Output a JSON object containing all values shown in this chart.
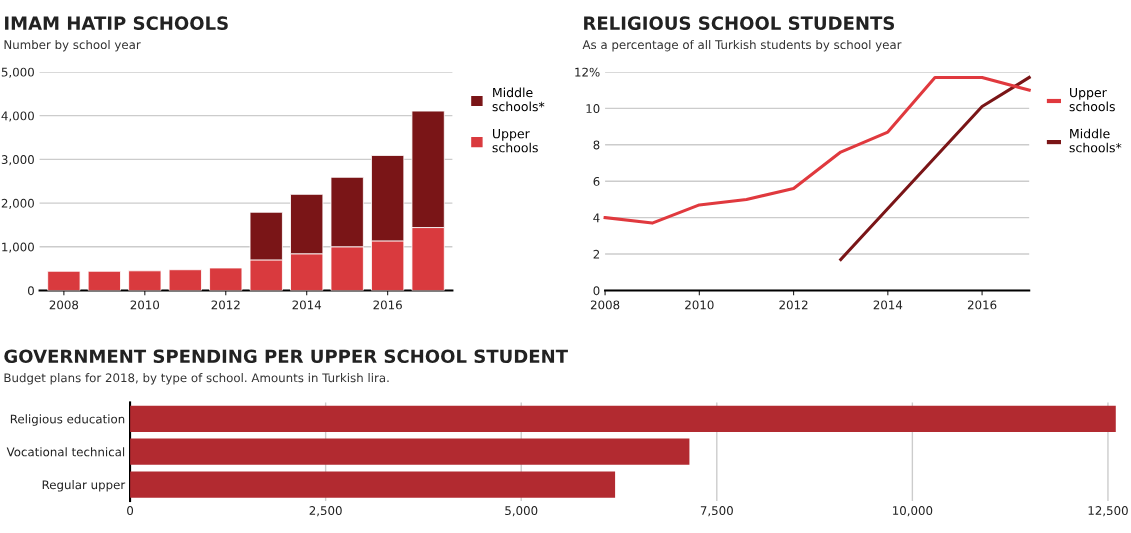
{
  "chart_data": [
    {
      "type": "bar",
      "title": "IMAM HATIP SCHOOLS",
      "subtitle": "Number by school year",
      "stacked": true,
      "x": [
        2008,
        2009,
        2010,
        2011,
        2012,
        2013,
        2014,
        2015,
        2016,
        2017
      ],
      "series": [
        {
          "name": "Upper\nschools",
          "color": "#d93a3e",
          "values": [
            440,
            440,
            450,
            475,
            515,
            700,
            840,
            1000,
            1135,
            1440
          ]
        },
        {
          "name": "Middle\nschools*",
          "color": "#7a1517",
          "values": [
            null,
            null,
            null,
            null,
            null,
            1090,
            1360,
            1590,
            1955,
            2665
          ]
        }
      ],
      "xlim": [
        2007.4,
        2017.6
      ],
      "xticks": [
        2008,
        2010,
        2012,
        2014,
        2016
      ],
      "ylim": [
        0,
        5000
      ],
      "yticks": [
        0,
        {
          "value": 1000,
          "label": "1,000"
        },
        {
          "value": 2000,
          "label": "2,000"
        },
        {
          "value": 3000,
          "label": "3,000"
        },
        {
          "value": 4000,
          "label": "4,000"
        },
        {
          "value": 5000,
          "label": "5,000"
        }
      ],
      "grid": "y",
      "legend": "right"
    },
    {
      "type": "line",
      "title": "RELIGIOUS SCHOOL STUDENTS",
      "subtitle": "As a percentage of all Turkish students by school year",
      "x": [
        2008,
        2009,
        2010,
        2011,
        2012,
        2013,
        2014,
        2015,
        2016,
        2017
      ],
      "series": [
        {
          "name": "Middle\nschools*",
          "color": "#7a1517",
          "values": [
            null,
            null,
            null,
            null,
            null,
            1.7,
            4.5,
            7.3,
            10.1,
            11.7
          ]
        },
        {
          "name": "Upper\nschools",
          "color": "#e0393e",
          "values": [
            4.0,
            3.7,
            4.7,
            5.0,
            5.6,
            7.6,
            8.7,
            11.7,
            11.7,
            11.0
          ]
        }
      ],
      "xlim": [
        2008,
        2017
      ],
      "xticks": [
        2008,
        2010,
        2012,
        2014,
        2016
      ],
      "ylim": [
        0,
        12
      ],
      "yticks": [
        0,
        2,
        4,
        6,
        8,
        10,
        {
          "value": 12,
          "label": "12%"
        }
      ],
      "grid": "y",
      "legend": "right",
      "marker": "none",
      "line_style": "solid"
    },
    {
      "type": "bar",
      "orientation": "horizontal",
      "title": "GOVERNMENT SPENDING PER UPPER SCHOOL STUDENT",
      "subtitle": "Budget plans for 2018, by type of school. Amounts in Turkish lira.",
      "categories": [
        "Religious education",
        "Vocational technical",
        "Regular upper"
      ],
      "values": [
        12600,
        7150,
        6200
      ],
      "color": "#b22a30",
      "xlim": [
        0,
        12650
      ],
      "xticks": [
        0,
        {
          "value": 2500,
          "label": "2,500"
        },
        {
          "value": 5000,
          "label": "5,000"
        },
        {
          "value": 7500,
          "label": "7,500"
        },
        {
          "value": 10000,
          "label": "10,000"
        },
        {
          "value": 12500,
          "label": "12,500"
        }
      ],
      "grid": "x"
    }
  ]
}
